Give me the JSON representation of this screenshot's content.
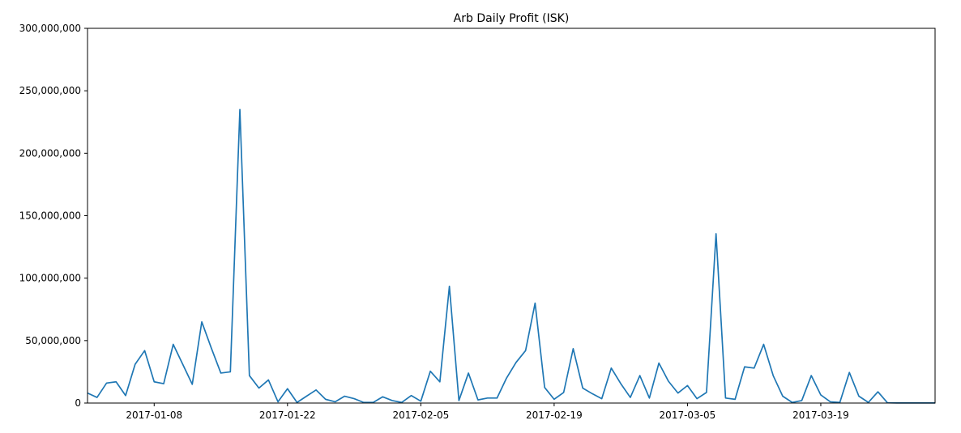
{
  "chart_data": {
    "type": "line",
    "title": "Arb Daily Profit (ISK)",
    "xlabel": "",
    "ylabel": "",
    "ylim": [
      0,
      300000000
    ],
    "xlim": [
      "2017-01-01",
      "2017-03-31"
    ],
    "yticks": [
      0,
      50000000,
      100000000,
      150000000,
      200000000,
      250000000,
      300000000
    ],
    "ytick_labels": [
      "0",
      "50,000,000",
      "100,000,000",
      "150,000,000",
      "200,000,000",
      "250,000,000",
      "300,000,000"
    ],
    "xticks": [
      "2017-01-08",
      "2017-01-22",
      "2017-02-05",
      "2017-02-19",
      "2017-03-05",
      "2017-03-19"
    ],
    "xtick_labels": [
      "2017-01-08",
      "2017-01-22",
      "2017-02-05",
      "2017-02-19",
      "2017-03-05",
      "2017-03-19"
    ],
    "grid": false,
    "legend": "none",
    "line_color": "#1f77b4",
    "series": [
      {
        "x": [
          "2017-01-01",
          "2017-01-02",
          "2017-01-03",
          "2017-01-04",
          "2017-01-05",
          "2017-01-06",
          "2017-01-07",
          "2017-01-08",
          "2017-01-09",
          "2017-01-10",
          "2017-01-11",
          "2017-01-12",
          "2017-01-13",
          "2017-01-14",
          "2017-01-15",
          "2017-01-16",
          "2017-01-17",
          "2017-01-18",
          "2017-01-19",
          "2017-01-20",
          "2017-01-21",
          "2017-01-22",
          "2017-01-23",
          "2017-01-24",
          "2017-01-25",
          "2017-01-26",
          "2017-01-27",
          "2017-01-28",
          "2017-01-29",
          "2017-01-30",
          "2017-01-31",
          "2017-02-01",
          "2017-02-02",
          "2017-02-03",
          "2017-02-04",
          "2017-02-05",
          "2017-02-06",
          "2017-02-07",
          "2017-02-08",
          "2017-02-09",
          "2017-02-10",
          "2017-02-11",
          "2017-02-12",
          "2017-02-13",
          "2017-02-14",
          "2017-02-15",
          "2017-02-16",
          "2017-02-17",
          "2017-02-18",
          "2017-02-19",
          "2017-02-20",
          "2017-02-21",
          "2017-02-22",
          "2017-02-23",
          "2017-02-24",
          "2017-02-25",
          "2017-02-26",
          "2017-02-27",
          "2017-02-28",
          "2017-03-01",
          "2017-03-02",
          "2017-03-03",
          "2017-03-04",
          "2017-03-05",
          "2017-03-06",
          "2017-03-07",
          "2017-03-08",
          "2017-03-09",
          "2017-03-10",
          "2017-03-11",
          "2017-03-12",
          "2017-03-13",
          "2017-03-14",
          "2017-03-15",
          "2017-03-16",
          "2017-03-17",
          "2017-03-18",
          "2017-03-19",
          "2017-03-20",
          "2017-03-21",
          "2017-03-22",
          "2017-03-23",
          "2017-03-24",
          "2017-03-25",
          "2017-03-26",
          "2017-03-27",
          "2017-03-28",
          "2017-03-29",
          "2017-03-30",
          "2017-03-31"
        ],
        "y": [
          8000000,
          4500000,
          16000000,
          17000000,
          6000000,
          31000000,
          42000000,
          17000000,
          15500000,
          47000000,
          31000000,
          15000000,
          65000000,
          44000000,
          24000000,
          25000000,
          235000000,
          22000000,
          12000000,
          18500000,
          1000000,
          11500000,
          500000,
          5500000,
          10500000,
          3000000,
          1000000,
          5500000,
          3500000,
          500000,
          500000,
          5000000,
          2000000,
          500000,
          6000000,
          1500000,
          25500000,
          17000000,
          93500000,
          2000000,
          24000000,
          2500000,
          4000000,
          4000000,
          20000000,
          32500000,
          42000000,
          80000000,
          12500000,
          3000000,
          8500000,
          43500000,
          12000000,
          7500000,
          3500000,
          28000000,
          15500000,
          4500000,
          22000000,
          4000000,
          32000000,
          17500000,
          8000000,
          14000000,
          3500000,
          8500000,
          135500000,
          4000000,
          3000000,
          29000000,
          28000000,
          47000000,
          22000000,
          5500000,
          500000,
          2000000,
          22000000,
          6500000,
          1000000,
          500000,
          24500000,
          5500000,
          500000,
          9000000,
          200000,
          100000,
          100000,
          100000,
          100000,
          100000
        ]
      }
    ]
  }
}
